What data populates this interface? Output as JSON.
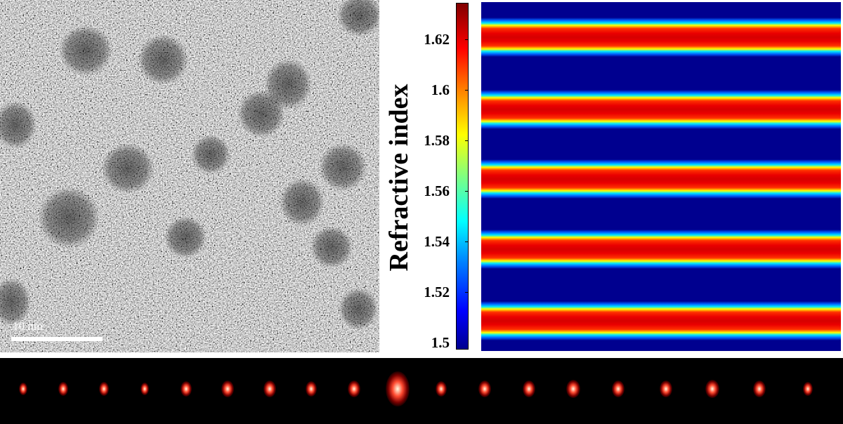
{
  "tem_image": {
    "scale_bar_label": "10 nm"
  },
  "colorbar": {
    "title": "Refractive index",
    "ticks": [
      "1.62",
      "1.6",
      "1.58",
      "1.56",
      "1.54",
      "1.52",
      "1.5"
    ],
    "range": [
      1.5,
      1.63
    ],
    "colormap": "jet"
  },
  "refractive_index_map": {
    "background_color": "#00008f",
    "band_count": 5,
    "band_peak_color": "#d60000"
  },
  "diffraction_pattern": {
    "spot_count": 19,
    "central_order_index": 9,
    "spot_color": "#ff2a1a"
  }
}
